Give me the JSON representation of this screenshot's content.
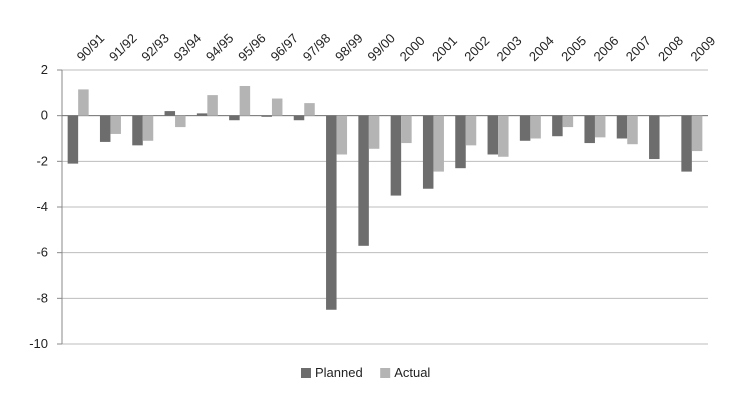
{
  "chart_data": {
    "type": "bar",
    "title": "",
    "xlabel": "",
    "ylabel": "",
    "categories": [
      "90/91",
      "91/92",
      "92/93",
      "93/94",
      "94/95",
      "95/96",
      "96/97",
      "97/98",
      "98/99",
      "99/00",
      "2000",
      "2001",
      "2002",
      "2003",
      "2004",
      "2005",
      "2006",
      "2007",
      "2008",
      "2009"
    ],
    "series": [
      {
        "name": "Planned",
        "color": "#6d6d6d",
        "values": [
          -2.1,
          -1.15,
          -1.3,
          0.2,
          0.1,
          -0.2,
          -0.05,
          -0.2,
          -8.5,
          -5.7,
          -3.5,
          -3.2,
          -2.3,
          -1.7,
          -1.1,
          -0.9,
          -1.2,
          -1.0,
          -1.9,
          -2.45
        ]
      },
      {
        "name": "Actual",
        "color": "#b4b4b4",
        "values": [
          1.15,
          -0.8,
          -1.1,
          -0.5,
          0.9,
          1.3,
          0.75,
          0.55,
          -1.7,
          -1.45,
          -1.2,
          -2.45,
          -1.3,
          -1.8,
          -1.0,
          -0.5,
          -0.95,
          -1.25,
          -0.05,
          -1.55
        ]
      }
    ],
    "ylim": [
      -10,
      2
    ],
    "yticks": [
      2,
      0,
      -2,
      -4,
      -6,
      -8,
      -10
    ],
    "grid": true,
    "legend_position": "bottom",
    "category_label_position": "top",
    "category_label_rotation": -45
  }
}
